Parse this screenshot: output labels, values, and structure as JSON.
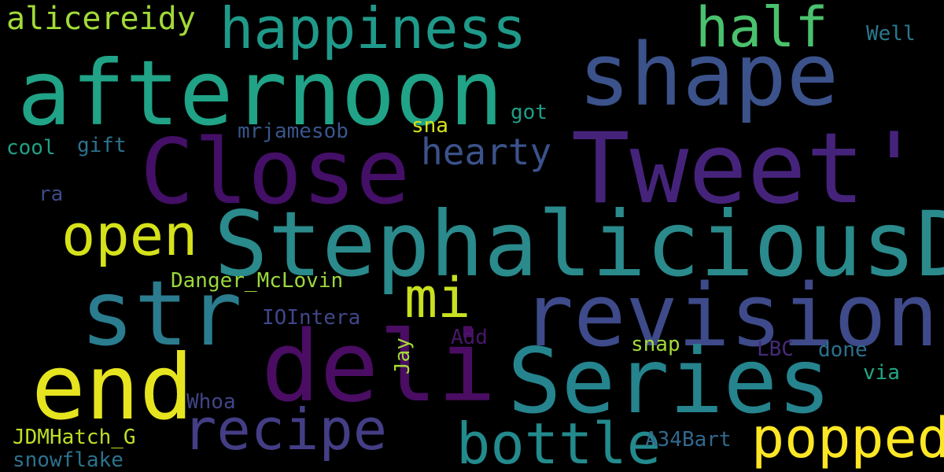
{
  "words": [
    {
      "key": "stephaliciousd",
      "text": "StephaliciousD",
      "color": "#2a8a8c"
    },
    {
      "key": "tweet",
      "text": "Tweet'",
      "color": "#46237a"
    },
    {
      "key": "afternoon",
      "text": "afternoon",
      "color": "#20a386"
    },
    {
      "key": "shape",
      "text": "shape",
      "color": "#3b528b"
    },
    {
      "key": "close",
      "text": "Close",
      "color": "#440f66"
    },
    {
      "key": "revision",
      "text": "revision",
      "color": "#3e4a89"
    },
    {
      "key": "series",
      "text": "Series",
      "color": "#25848e"
    },
    {
      "key": "str",
      "text": "str",
      "color": "#2a7c8e"
    },
    {
      "key": "deli",
      "text": "deli",
      "color": "#4a0d63"
    },
    {
      "key": "end",
      "text": "end",
      "color": "#e6e41f"
    },
    {
      "key": "happiness",
      "text": "happiness",
      "color": "#1f9a8a"
    },
    {
      "key": "recipe",
      "text": "recipe",
      "color": "#433e85"
    },
    {
      "key": "open",
      "text": "open",
      "color": "#d5e21a"
    },
    {
      "key": "bottle",
      "text": "bottle",
      "color": "#238a8d"
    },
    {
      "key": "popped",
      "text": "popped",
      "color": "#fde725"
    },
    {
      "key": "mi",
      "text": "mi",
      "color": "#c8e020"
    },
    {
      "key": "half",
      "text": "half",
      "color": "#4ac16d"
    },
    {
      "key": "hearty",
      "text": "hearty",
      "color": "#3b528b"
    },
    {
      "key": "alicereidy",
      "text": "alicereidy",
      "color": "#a2da37"
    },
    {
      "key": "danger_mclovin",
      "text": "Danger_McLovin",
      "color": "#9bd93c"
    },
    {
      "key": "mrjamesob",
      "text": "mrjamesob",
      "color": "#39568c"
    },
    {
      "key": "iointera",
      "text": "IOIntera",
      "color": "#3f4788"
    },
    {
      "key": "jdmhatch_g",
      "text": "JDMHatch_G",
      "color": "#bddf26"
    },
    {
      "key": "snowflake",
      "text": "snowflake",
      "color": "#2c728e"
    },
    {
      "key": "a34bart",
      "text": "A34Bart",
      "color": "#31688e"
    },
    {
      "key": "whoa",
      "text": "Whoa",
      "color": "#414487"
    },
    {
      "key": "jay",
      "text": "Jay",
      "color": "#a5db36"
    },
    {
      "key": "add",
      "text": "Add",
      "color": "#481769"
    },
    {
      "key": "snap",
      "text": "snap",
      "color": "#a2da37"
    },
    {
      "key": "lbc",
      "text": "LBC",
      "color": "#472a7a"
    },
    {
      "key": "done",
      "text": "done",
      "color": "#2d708e"
    },
    {
      "key": "via",
      "text": "via",
      "color": "#22a884"
    },
    {
      "key": "cool",
      "text": "cool",
      "color": "#1fa187"
    },
    {
      "key": "gift",
      "text": "gift",
      "color": "#2c728e"
    },
    {
      "key": "ra",
      "text": "ra",
      "color": "#3e4989"
    },
    {
      "key": "sna",
      "text": "sna",
      "color": "#d8e219"
    },
    {
      "key": "got",
      "text": "got",
      "color": "#1f9e89"
    },
    {
      "key": "well",
      "text": "Well",
      "color": "#2a788e"
    }
  ]
}
